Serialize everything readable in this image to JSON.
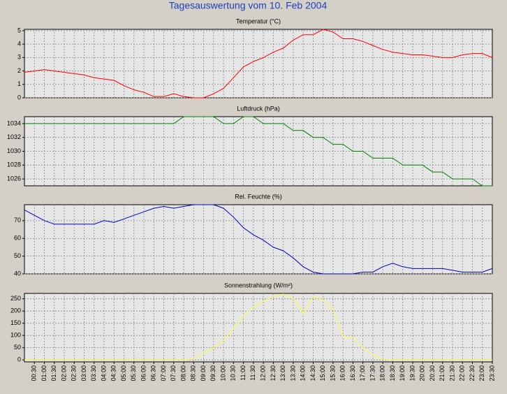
{
  "title": "Tagesauswertung vom 10. Feb 2004",
  "chart_data": [
    {
      "type": "line",
      "title": "Temperatur (°C)",
      "color": "#ff0000",
      "grid": true,
      "ylim": [
        0,
        5.1
      ],
      "yticks": [
        0,
        1,
        2,
        3,
        4,
        5
      ],
      "values": [
        1.9,
        2.0,
        2.1,
        2.0,
        1.9,
        1.8,
        1.7,
        1.5,
        1.4,
        1.3,
        0.9,
        0.6,
        0.4,
        0.1,
        0.1,
        0.3,
        0.1,
        0.0,
        0.0,
        0.3,
        0.7,
        1.5,
        2.3,
        2.7,
        3.0,
        3.4,
        3.7,
        4.3,
        4.7,
        4.7,
        5.1,
        4.9,
        4.4,
        4.4,
        4.2,
        3.9,
        3.6,
        3.4,
        3.3,
        3.2,
        3.2,
        3.1,
        3.0,
        3.0,
        3.2,
        3.3,
        3.3,
        3.0
      ]
    },
    {
      "type": "line",
      "title": "Luftdruck (hPa)",
      "color": "#008000",
      "grid": true,
      "ylim": [
        1025,
        1035
      ],
      "yticks": [
        1026,
        1028,
        1030,
        1032,
        1034
      ],
      "values": [
        1034,
        1034,
        1034,
        1034,
        1034,
        1034,
        1034,
        1034,
        1034,
        1034,
        1034,
        1034,
        1034,
        1034,
        1034,
        1034,
        1035,
        1035,
        1035,
        1035,
        1034,
        1034,
        1035,
        1035,
        1034,
        1034,
        1034,
        1033,
        1033,
        1032,
        1032,
        1031,
        1031,
        1030,
        1030,
        1029,
        1029,
        1029,
        1028,
        1028,
        1028,
        1027,
        1027,
        1026,
        1026,
        1026,
        1025,
        1025
      ]
    },
    {
      "type": "line",
      "title": "Rel. Feuchte (%)",
      "color": "#0000c0",
      "grid": true,
      "ylim": [
        40,
        79
      ],
      "yticks": [
        40,
        50,
        60,
        70
      ],
      "values": [
        76,
        73,
        70,
        68,
        68,
        68,
        68,
        68,
        70,
        69,
        71,
        73,
        75,
        77,
        78,
        77,
        78,
        79,
        79,
        79,
        77,
        72,
        66,
        62,
        59,
        55,
        53,
        49,
        44,
        41,
        40,
        40,
        40,
        40,
        41,
        41,
        44,
        46,
        44,
        43,
        43,
        43,
        43,
        42,
        41,
        41,
        41,
        43
      ]
    },
    {
      "type": "line",
      "title": "Sonnenstrahlung (W/m²)",
      "color": "#ffff40",
      "grid": true,
      "ylim": [
        -8,
        272
      ],
      "yticks": [
        0,
        50,
        100,
        150,
        200,
        250
      ],
      "categories": [
        null,
        "00:30",
        "01:00",
        "01:30",
        "02:00",
        "02:30",
        "03:00",
        "03:30",
        "04:00",
        "04:30",
        "05:00",
        "05:30",
        "06:00",
        "06:30",
        "07:00",
        "07:30",
        "08:00",
        "08:30",
        "09:00",
        "09:30",
        "10:00",
        "10:30",
        "11:00",
        "11:30",
        "12:00",
        "12:30",
        "13:00",
        "13:30",
        "14:00",
        "14:30",
        "15:00",
        "15:30",
        "16:00",
        "16:30",
        "17:00",
        "17:30",
        "18:00",
        "18:30",
        "19:00",
        "19:30",
        "20:00",
        "20:30",
        "21:00",
        "21:30",
        "22:00",
        "22:30",
        "23:00",
        "23:30"
      ],
      "values": [
        0,
        0,
        0,
        0,
        0,
        0,
        0,
        0,
        0,
        0,
        0,
        0,
        0,
        0,
        0,
        0,
        0,
        5,
        30,
        50,
        80,
        130,
        180,
        215,
        240,
        260,
        270,
        250,
        190,
        260,
        245,
        210,
        95,
        90,
        50,
        20,
        3,
        0,
        0,
        0,
        0,
        0,
        0,
        0,
        0,
        0,
        0,
        0
      ]
    }
  ]
}
